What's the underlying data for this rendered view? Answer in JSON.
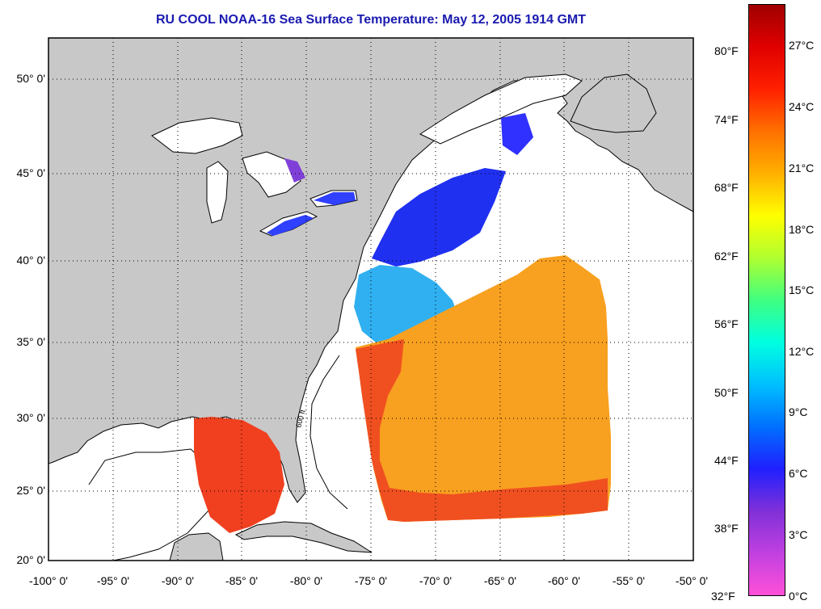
{
  "title": "RU COOL  NOAA-16  Sea Surface Temperature:  May 12, 2005 1914 GMT",
  "map": {
    "extent": {
      "lon": [
        -100,
        -50
      ],
      "lat": [
        20,
        52
      ]
    },
    "land_color": "#c8c8c8",
    "ocean_no_data_color": "#ffffff",
    "grid": "dotted",
    "latitude_labels": [
      "50° 0'",
      "45° 0'",
      "40° 0'",
      "35° 0'",
      "30° 0'",
      "25° 0'",
      "20° 0'"
    ],
    "latitude_values": [
      50,
      45,
      40,
      35,
      30,
      25,
      20
    ],
    "longitude_labels": [
      "-100° 0'",
      "-95° 0'",
      "-90° 0'",
      "-85° 0'",
      "-80° 0'",
      "-75° 0'",
      "-70° 0'",
      "-65° 0'",
      "-60° 0'",
      "-55° 0'",
      "-50° 0'"
    ],
    "longitude_values": [
      -100,
      -95,
      -90,
      -85,
      -80,
      -75,
      -70,
      -65,
      -60,
      -55,
      -50
    ],
    "bathymetry_label": "600 ft"
  },
  "colorbar": {
    "fahrenheit_labels": [
      "80°F",
      "74°F",
      "68°F",
      "62°F",
      "56°F",
      "50°F",
      "44°F",
      "38°F",
      "32°F"
    ],
    "fahrenheit_values": [
      80,
      74,
      68,
      62,
      56,
      50,
      44,
      38,
      32
    ],
    "celsius_labels": [
      "27°C",
      "24°C",
      "21°C",
      "18°C",
      "15°C",
      "12°C",
      "9°C",
      "6°C",
      "3°C",
      "0°C"
    ],
    "celsius_values": [
      27,
      24,
      21,
      18,
      15,
      12,
      9,
      6,
      3,
      0
    ],
    "range_c": [
      0,
      28.5
    ],
    "colors": [
      "#ff50d8",
      "#c040e0",
      "#8030d8",
      "#2020ff",
      "#0070ff",
      "#00c0ff",
      "#00ffe0",
      "#40ff80",
      "#b0ff30",
      "#ffff00",
      "#ffb000",
      "#ff7000",
      "#ff2000",
      "#e00000",
      "#a00000"
    ]
  }
}
